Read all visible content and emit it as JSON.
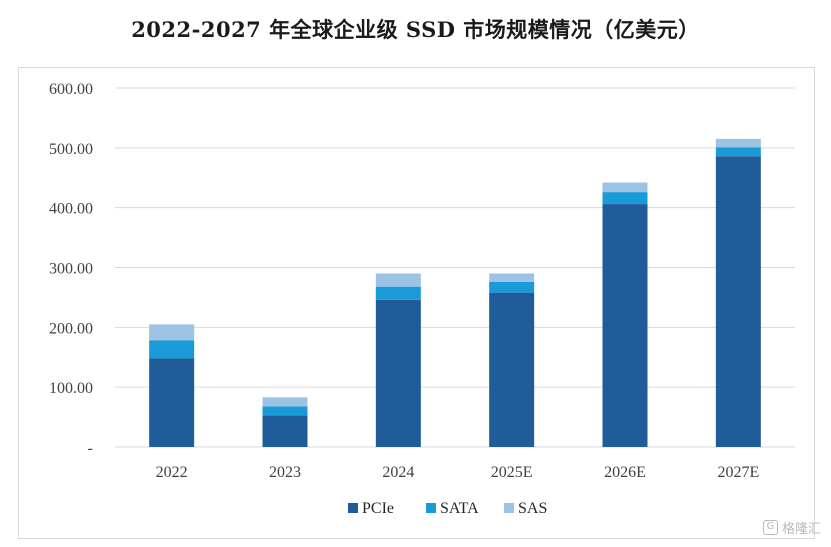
{
  "title": "2022-2027 年全球企业级 SSD 市场规模情况（亿美元）",
  "chart_data": {
    "type": "bar",
    "stacked": true,
    "title": "2022-2027 年全球企业级 SSD 市场规模情况（亿美元）",
    "xlabel": "",
    "ylabel": "",
    "categories": [
      "2022",
      "2023",
      "2024",
      "2025E",
      "2026E",
      "2027E"
    ],
    "series": [
      {
        "name": "PCIe",
        "color": "#1f5c99",
        "values": [
          148,
          53,
          246,
          258,
          406,
          486
        ]
      },
      {
        "name": "SATA",
        "color": "#1a9ad6",
        "values": [
          30,
          15,
          22,
          18,
          20,
          15
        ]
      },
      {
        "name": "SAS",
        "color": "#9cc3e4",
        "values": [
          27,
          15,
          22,
          14,
          16,
          14
        ]
      }
    ],
    "ylim": [
      0,
      600
    ],
    "yticks": [
      0,
      100,
      200,
      300,
      400,
      500,
      600
    ],
    "ytick_labels": [
      "-",
      "100.00",
      "200.00",
      "300.00",
      "400.00",
      "500.00",
      "600.00"
    ],
    "grid": true,
    "legend_position": "bottom"
  },
  "watermark": {
    "icon": "gelonghui-logo-icon",
    "logo_glyph": "G",
    "text": "格隆汇"
  }
}
